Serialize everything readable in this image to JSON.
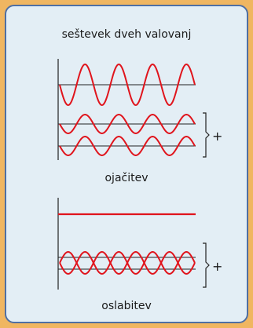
{
  "title": "seštevek dveh valovanj",
  "panel_constructive": {
    "caption": "ojačitev",
    "operator": "+"
  },
  "panel_destructive": {
    "caption": "oslabitev",
    "operator": "+"
  },
  "colors": {
    "wave": "#e0141c",
    "axis": "#222222",
    "card_bg": "#e3eef5",
    "card_border": "#4f6fa3",
    "outer_bg": "#f0b661"
  }
}
